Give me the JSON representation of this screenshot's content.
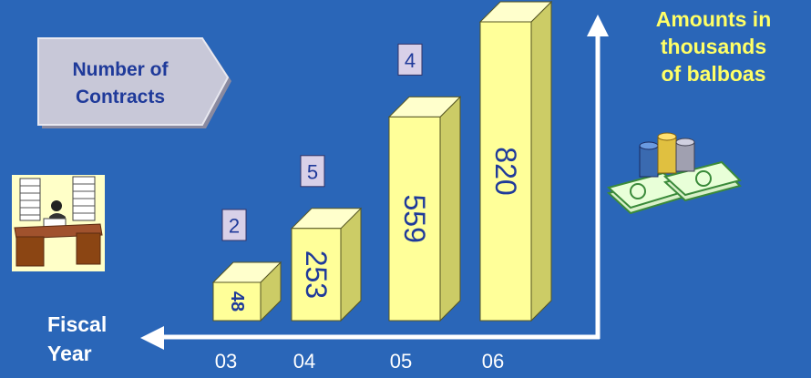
{
  "chart_data": {
    "type": "bar",
    "categories": [
      "03",
      "04",
      "05",
      "06"
    ],
    "values": [
      48,
      253,
      559,
      820
    ],
    "contracts": [
      2,
      5,
      4,
      ""
    ],
    "ylim": [
      0,
      850
    ]
  },
  "labels": {
    "badge_line1": "Number of",
    "badge_line2": "Contracts",
    "amounts_line1": "Amounts in",
    "amounts_line2": "thousands",
    "amounts_line3": "of balboas",
    "fiscal_line1": "Fiscal",
    "fiscal_line2": "Year"
  },
  "colors": {
    "background": "#2a66b8",
    "bar_front": "#ffff99",
    "bar_side": "#cccc66",
    "text_value": "#1f3a9a",
    "badge": "#c8c8d8",
    "axis": "#ffffff"
  },
  "icons": {
    "left": "desk-with-paper-stacks-icon",
    "right": "money-and-coins-icon"
  }
}
